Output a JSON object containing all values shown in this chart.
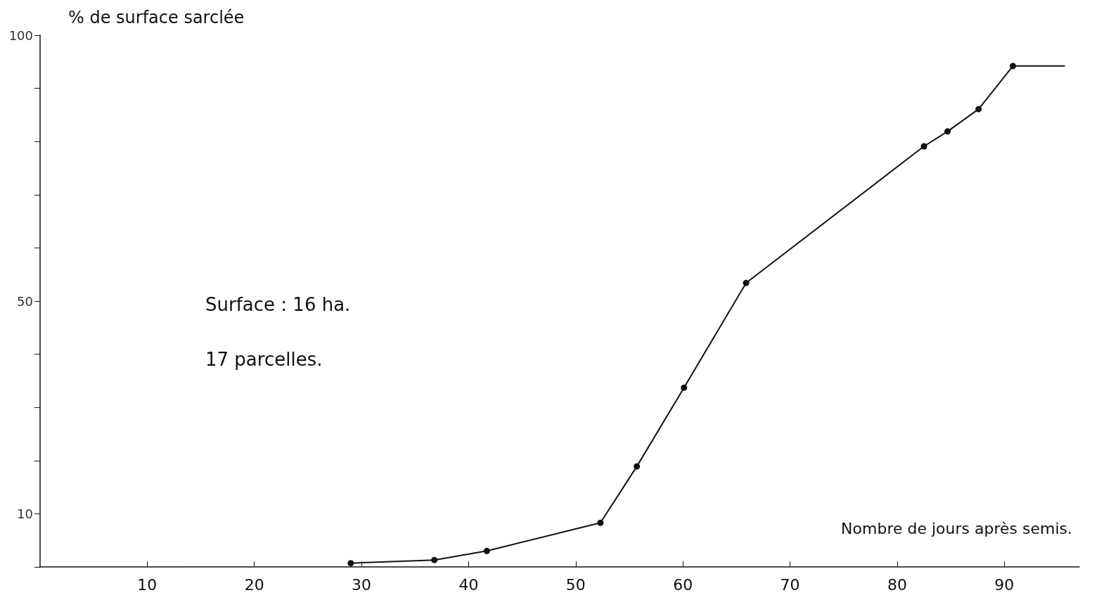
{
  "chart_data": {
    "type": "line",
    "ylabel": "% de surface sarclée",
    "xlabel": "Nombre de jours après semis.",
    "annotations": [
      "Surface : 16 ha.",
      "17 parcelles."
    ],
    "series": [
      {
        "x": [
          29.0,
          36.8,
          41.7,
          52.3,
          55.7,
          60.1,
          65.9,
          82.5,
          84.7,
          87.6,
          90.8
        ],
        "values": [
          0.7,
          1.3,
          3.0,
          8.3,
          18.9,
          33.7,
          53.4,
          79.1,
          81.9,
          86.1,
          94.2
        ],
        "color": "#111111",
        "marker": "circle"
      },
      {
        "x": [
          90.8,
          95.6
        ],
        "values": [
          94.2,
          94.2
        ],
        "color": "#111111",
        "marker": "none"
      }
    ],
    "xlim": [
      0,
      97
    ],
    "xticks": [
      10,
      20,
      30,
      40,
      50,
      60,
      70,
      80,
      90
    ],
    "ylim": [
      0,
      100
    ],
    "yticks": [
      {
        "value": 0,
        "label": null
      },
      10,
      {
        "value": 20,
        "label": null
      },
      {
        "value": 30,
        "label": null
      },
      {
        "value": 40,
        "label": null
      },
      50,
      {
        "value": 60,
        "label": null
      },
      {
        "value": 70,
        "label": null
      },
      {
        "value": 80,
        "label": null
      },
      {
        "value": 90,
        "label": null
      },
      100
    ],
    "grid": false,
    "line_style": "solid"
  }
}
